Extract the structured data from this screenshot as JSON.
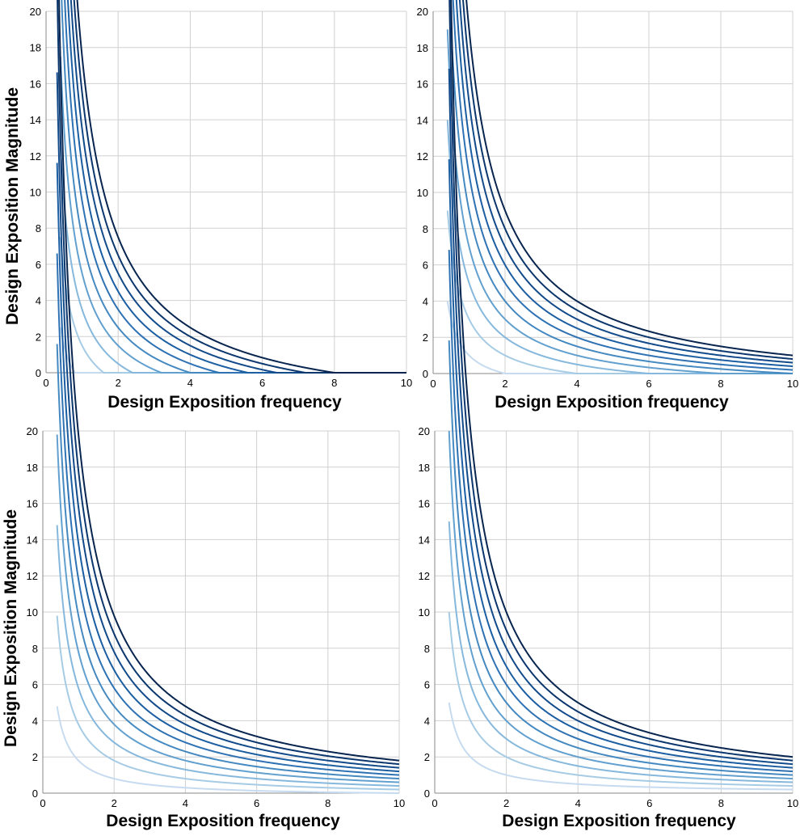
{
  "chart_data": [
    {
      "type": "line",
      "xlabel": "Design Exposition frequency",
      "ylabel": "Design Exposition Magnitude",
      "xlim": [
        0,
        10
      ],
      "ylim": [
        0,
        20
      ],
      "xticks": [
        "0",
        "2",
        "4",
        "6",
        "8",
        "10"
      ],
      "yticks": [
        "0",
        "2",
        "4",
        "6",
        "8",
        "10",
        "12",
        "14",
        "16",
        "18",
        "20"
      ],
      "grid": true,
      "model": "y = max(0, 2*k/x - c)",
      "curves_k": [
        1,
        2,
        3,
        4,
        5,
        6,
        7,
        8,
        9,
        10
      ],
      "c": 2.5,
      "x_start": 0.4
    },
    {
      "type": "line",
      "xlabel": "Design Exposition frequency",
      "ylabel": "",
      "xlim": [
        0,
        10
      ],
      "ylim": [
        0,
        20
      ],
      "xticks": [
        "0",
        "2",
        "4",
        "6",
        "8",
        "10"
      ],
      "yticks": [
        "0",
        "2",
        "4",
        "6",
        "8",
        "10",
        "12",
        "14",
        "16",
        "18",
        "20"
      ],
      "grid": true,
      "model": "y = max(0, 2*k/x - c)",
      "curves_k": [
        1,
        2,
        3,
        4,
        5,
        6,
        7,
        8,
        9,
        10
      ],
      "c": 1.0,
      "x_start": 0.4
    },
    {
      "type": "line",
      "xlabel": "Design Exposition frequency",
      "ylabel": "Design Exposition Magnitude",
      "xlim": [
        0,
        10
      ],
      "ylim": [
        0,
        20
      ],
      "xticks": [
        "0",
        "2",
        "4",
        "6",
        "8",
        "10"
      ],
      "yticks": [
        "0",
        "2",
        "4",
        "6",
        "8",
        "10",
        "12",
        "14",
        "16",
        "18",
        "20"
      ],
      "grid": true,
      "model": "y = max(0, 2*k/x - c)",
      "curves_k": [
        1,
        2,
        3,
        4,
        5,
        6,
        7,
        8,
        9,
        10
      ],
      "c": 0.2,
      "x_start": 0.4
    },
    {
      "type": "line",
      "xlabel": "Design Exposition frequency",
      "ylabel": "",
      "xlim": [
        0,
        10
      ],
      "ylim": [
        0,
        20
      ],
      "xticks": [
        "0",
        "2",
        "4",
        "6",
        "8",
        "10"
      ],
      "yticks": [
        "0",
        "2",
        "4",
        "6",
        "8",
        "10",
        "12",
        "14",
        "16",
        "18",
        "20"
      ],
      "grid": true,
      "model": "y = max(0, 2*k/x - c)",
      "curves_k": [
        1,
        2,
        3,
        4,
        5,
        6,
        7,
        8,
        9,
        10
      ],
      "c": 0.0,
      "x_start": 0.4
    }
  ],
  "colors": [
    "#c6dbef",
    "#a6cbe4",
    "#85b8dc",
    "#62a0cf",
    "#4589c1",
    "#2e72b4",
    "#1c5ea2",
    "#124a8a",
    "#0b376e",
    "#08254f"
  ]
}
